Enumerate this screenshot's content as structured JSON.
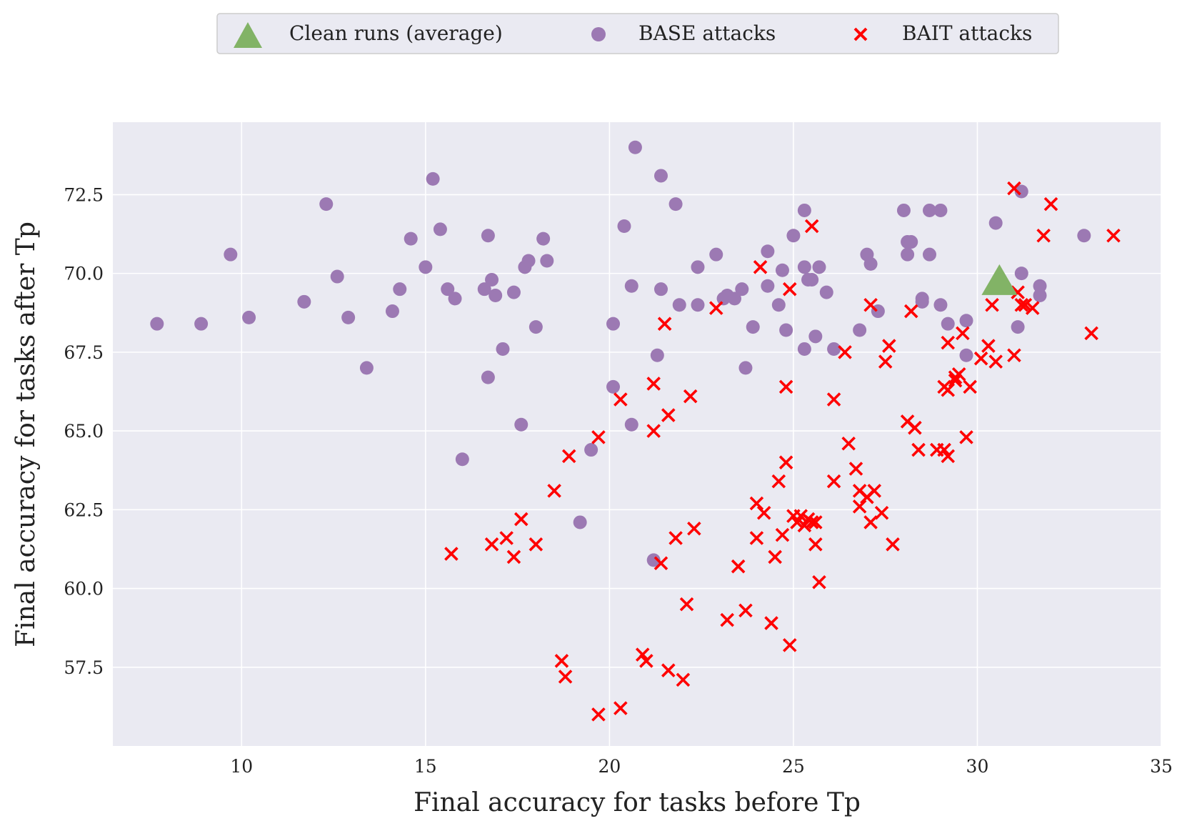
{
  "chart_data": {
    "type": "scatter",
    "title": "",
    "xlabel": "Final accuracy for tasks before Tp",
    "ylabel": "Final accuracy for tasks after Tp",
    "xlim": [
      6.5,
      35
    ],
    "ylim": [
      55.0,
      74.8
    ],
    "xticks": [
      10,
      15,
      20,
      25,
      30,
      35
    ],
    "yticks": [
      57.5,
      60.0,
      62.5,
      65.0,
      67.5,
      70.0,
      72.5
    ],
    "xtick_labels": [
      "10",
      "15",
      "20",
      "25",
      "30",
      "35"
    ],
    "ytick_labels": [
      "57.5",
      "60.0",
      "62.5",
      "65.0",
      "67.5",
      "70.0",
      "72.5"
    ],
    "grid": true,
    "legend_position": "top-center",
    "colors": {
      "background": "#eaeaf2",
      "grid": "#ffffff",
      "clean": "#82b366",
      "base": "#9c79b3",
      "bait": "#ff0000"
    },
    "series": [
      {
        "name": "Clean runs (average)",
        "marker": "triangle",
        "points": [
          [
            30.6,
            69.7
          ]
        ]
      },
      {
        "name": "BASE attacks",
        "marker": "circle",
        "points": [
          [
            7.7,
            68.4
          ],
          [
            8.9,
            68.4
          ],
          [
            9.7,
            70.6
          ],
          [
            10.2,
            68.6
          ],
          [
            11.7,
            69.1
          ],
          [
            12.3,
            72.2
          ],
          [
            12.6,
            69.9
          ],
          [
            12.9,
            68.6
          ],
          [
            13.4,
            67.0
          ],
          [
            14.1,
            68.8
          ],
          [
            14.3,
            69.5
          ],
          [
            14.6,
            71.1
          ],
          [
            15.0,
            70.2
          ],
          [
            15.2,
            73.0
          ],
          [
            15.4,
            71.4
          ],
          [
            15.6,
            69.5
          ],
          [
            15.8,
            69.2
          ],
          [
            16.0,
            64.1
          ],
          [
            16.6,
            69.5
          ],
          [
            16.7,
            71.2
          ],
          [
            16.7,
            66.7
          ],
          [
            16.8,
            69.8
          ],
          [
            16.9,
            69.3
          ],
          [
            17.1,
            67.6
          ],
          [
            17.4,
            69.4
          ],
          [
            17.6,
            65.2
          ],
          [
            17.7,
            70.2
          ],
          [
            17.8,
            70.4
          ],
          [
            18.0,
            68.3
          ],
          [
            18.2,
            71.1
          ],
          [
            18.3,
            70.4
          ],
          [
            19.2,
            62.1
          ],
          [
            19.5,
            64.4
          ],
          [
            20.1,
            68.4
          ],
          [
            20.1,
            66.4
          ],
          [
            20.4,
            71.5
          ],
          [
            20.6,
            69.6
          ],
          [
            20.6,
            65.2
          ],
          [
            20.7,
            74.0
          ],
          [
            21.2,
            60.9
          ],
          [
            21.3,
            67.4
          ],
          [
            21.4,
            73.1
          ],
          [
            21.4,
            69.5
          ],
          [
            21.8,
            72.2
          ],
          [
            21.9,
            69.0
          ],
          [
            22.4,
            70.2
          ],
          [
            22.4,
            69.0
          ],
          [
            22.9,
            70.6
          ],
          [
            23.1,
            69.2
          ],
          [
            23.2,
            69.3
          ],
          [
            23.4,
            69.2
          ],
          [
            23.6,
            69.5
          ],
          [
            23.7,
            67.0
          ],
          [
            23.9,
            68.3
          ],
          [
            24.3,
            70.7
          ],
          [
            24.3,
            69.6
          ],
          [
            24.6,
            69.0
          ],
          [
            24.7,
            70.1
          ],
          [
            24.8,
            68.2
          ],
          [
            25.0,
            71.2
          ],
          [
            25.3,
            72.0
          ],
          [
            25.3,
            70.2
          ],
          [
            25.3,
            67.6
          ],
          [
            25.4,
            69.8
          ],
          [
            25.5,
            69.8
          ],
          [
            25.6,
            68.0
          ],
          [
            25.7,
            70.2
          ],
          [
            25.9,
            69.4
          ],
          [
            26.1,
            67.6
          ],
          [
            26.8,
            68.2
          ],
          [
            27.0,
            70.6
          ],
          [
            27.1,
            70.3
          ],
          [
            27.3,
            68.8
          ],
          [
            28.0,
            72.0
          ],
          [
            28.1,
            71.0
          ],
          [
            28.1,
            70.6
          ],
          [
            28.2,
            71.0
          ],
          [
            28.5,
            69.2
          ],
          [
            28.5,
            69.1
          ],
          [
            28.7,
            72.0
          ],
          [
            28.7,
            70.6
          ],
          [
            29.0,
            72.0
          ],
          [
            29.0,
            69.0
          ],
          [
            29.2,
            68.4
          ],
          [
            29.7,
            68.5
          ],
          [
            29.7,
            67.4
          ],
          [
            30.5,
            71.6
          ],
          [
            31.1,
            68.3
          ],
          [
            31.2,
            72.6
          ],
          [
            31.2,
            70.0
          ],
          [
            31.7,
            69.6
          ],
          [
            31.7,
            69.3
          ],
          [
            32.9,
            71.2
          ]
        ]
      },
      {
        "name": "BAIT attacks",
        "marker": "x",
        "points": [
          [
            15.7,
            61.1
          ],
          [
            16.8,
            61.4
          ],
          [
            17.2,
            61.6
          ],
          [
            17.4,
            61.0
          ],
          [
            17.6,
            62.2
          ],
          [
            18.0,
            61.4
          ],
          [
            18.5,
            63.1
          ],
          [
            18.7,
            57.7
          ],
          [
            18.8,
            57.2
          ],
          [
            18.9,
            64.2
          ],
          [
            19.7,
            64.8
          ],
          [
            19.7,
            56.0
          ],
          [
            20.3,
            66.0
          ],
          [
            20.3,
            56.2
          ],
          [
            20.9,
            57.9
          ],
          [
            21.0,
            57.7
          ],
          [
            21.2,
            66.5
          ],
          [
            21.2,
            65.0
          ],
          [
            21.4,
            60.8
          ],
          [
            21.5,
            68.4
          ],
          [
            21.6,
            65.5
          ],
          [
            21.6,
            57.4
          ],
          [
            21.8,
            61.6
          ],
          [
            22.0,
            57.1
          ],
          [
            22.1,
            59.5
          ],
          [
            22.2,
            66.1
          ],
          [
            22.3,
            61.9
          ],
          [
            22.9,
            68.9
          ],
          [
            23.2,
            59.0
          ],
          [
            23.5,
            60.7
          ],
          [
            23.7,
            59.3
          ],
          [
            24.0,
            62.7
          ],
          [
            24.0,
            61.6
          ],
          [
            24.1,
            70.2
          ],
          [
            24.2,
            62.4
          ],
          [
            24.4,
            58.9
          ],
          [
            24.5,
            61.0
          ],
          [
            24.6,
            63.4
          ],
          [
            24.7,
            61.7
          ],
          [
            24.8,
            66.4
          ],
          [
            24.8,
            64.0
          ],
          [
            24.9,
            69.5
          ],
          [
            24.9,
            58.2
          ],
          [
            25.0,
            62.3
          ],
          [
            25.1,
            62.1
          ],
          [
            25.2,
            62.3
          ],
          [
            25.3,
            62.0
          ],
          [
            25.4,
            62.2
          ],
          [
            25.5,
            71.5
          ],
          [
            25.5,
            62.1
          ],
          [
            25.6,
            62.1
          ],
          [
            25.6,
            61.4
          ],
          [
            25.7,
            60.2
          ],
          [
            26.1,
            66.0
          ],
          [
            26.1,
            63.4
          ],
          [
            26.4,
            67.5
          ],
          [
            26.5,
            64.6
          ],
          [
            26.7,
            63.8
          ],
          [
            26.8,
            63.1
          ],
          [
            26.8,
            62.6
          ],
          [
            27.0,
            62.9
          ],
          [
            27.1,
            69.0
          ],
          [
            27.1,
            62.1
          ],
          [
            27.2,
            63.1
          ],
          [
            27.4,
            62.4
          ],
          [
            27.5,
            67.2
          ],
          [
            27.6,
            67.7
          ],
          [
            27.7,
            61.4
          ],
          [
            28.1,
            65.3
          ],
          [
            28.2,
            68.8
          ],
          [
            28.3,
            65.1
          ],
          [
            28.4,
            64.4
          ],
          [
            28.9,
            64.4
          ],
          [
            29.1,
            64.4
          ],
          [
            29.1,
            66.4
          ],
          [
            29.2,
            67.8
          ],
          [
            29.2,
            66.3
          ],
          [
            29.2,
            64.2
          ],
          [
            29.4,
            66.7
          ],
          [
            29.4,
            66.6
          ],
          [
            29.5,
            66.8
          ],
          [
            29.6,
            68.1
          ],
          [
            29.7,
            64.8
          ],
          [
            29.8,
            66.4
          ],
          [
            30.1,
            67.3
          ],
          [
            30.3,
            67.7
          ],
          [
            30.4,
            69.0
          ],
          [
            30.5,
            67.2
          ],
          [
            31.0,
            72.7
          ],
          [
            31.0,
            67.4
          ],
          [
            31.1,
            69.4
          ],
          [
            31.2,
            69.0
          ],
          [
            31.3,
            69.0
          ],
          [
            31.5,
            68.9
          ],
          [
            31.8,
            71.2
          ],
          [
            32.0,
            72.2
          ],
          [
            33.1,
            68.1
          ],
          [
            33.7,
            71.2
          ]
        ]
      }
    ]
  }
}
